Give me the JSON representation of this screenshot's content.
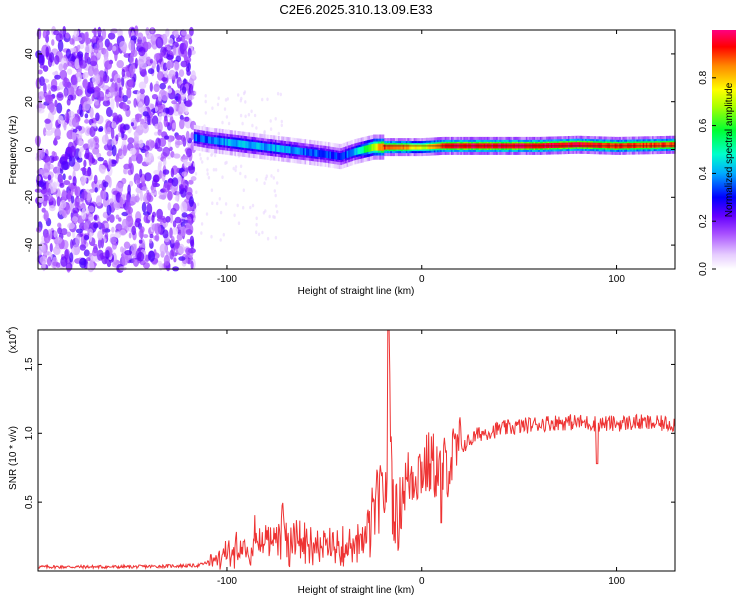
{
  "chart_data": [
    {
      "type": "heatmap",
      "title": "C2E6.2025.310.13.09.E33",
      "xlabel": "Height of straight line (km)",
      "ylabel": "Frequency (Hz)",
      "xlim": [
        -197,
        130
      ],
      "ylim": [
        -50,
        50
      ],
      "xticks": [
        -100,
        0,
        100
      ],
      "yticks": [
        -40,
        -20,
        0,
        20,
        40
      ],
      "colorbar": {
        "label": "Normalized spectral amplitude",
        "range": [
          0,
          1
        ],
        "ticks": [
          0.0,
          0.2,
          0.4,
          0.6,
          0.8
        ]
      },
      "noise_region_x": [
        -197,
        -117
      ],
      "ridge": {
        "x": [
          -117,
          -110,
          -100,
          -90,
          -80,
          -70,
          -60,
          -50,
          -42,
          -35,
          -30,
          -25,
          -20,
          -10,
          0,
          10,
          20,
          40,
          60,
          80,
          100,
          130
        ],
        "frequency_hz": [
          5,
          4,
          3,
          2,
          1,
          0,
          -1,
          -2,
          -3,
          -1,
          0,
          1,
          1,
          1,
          1,
          1.5,
          1.5,
          1.5,
          1.5,
          2,
          1.5,
          2
        ],
        "amplitude": [
          0.35,
          0.35,
          0.4,
          0.4,
          0.4,
          0.4,
          0.35,
          0.35,
          0.3,
          0.4,
          0.55,
          0.7,
          0.9,
          0.85,
          0.7,
          0.9,
          0.95,
          0.95,
          0.95,
          0.95,
          0.9,
          0.9
        ]
      }
    },
    {
      "type": "line",
      "title": "",
      "xlabel": "Height of straight line (km)",
      "ylabel": "SNR (10 * v/v)",
      "yscale_label": "(x10",
      "yscale_exp": "4",
      "xlim": [
        -197,
        130
      ],
      "ylim": [
        0,
        1.75
      ],
      "xticks": [
        -100,
        0,
        100
      ],
      "yticks": [
        0.5,
        1.0,
        1.5
      ],
      "ytick_labels": [
        "0.5",
        "1.0",
        "1.5"
      ],
      "color": "#ee3333",
      "series": [
        {
          "name": "SNR",
          "x": [
            -197,
            -150,
            -115,
            -108,
            -100,
            -90,
            -80,
            -72,
            -65,
            -55,
            -45,
            -35,
            -28,
            -25,
            -23,
            -20,
            -18,
            -17,
            -15,
            -12,
            -10,
            -5,
            0,
            5,
            10,
            15,
            20,
            25,
            30,
            40,
            50,
            60,
            70,
            80,
            90,
            100,
            110,
            120,
            130
          ],
          "y": [
            0.03,
            0.03,
            0.04,
            0.07,
            0.12,
            0.2,
            0.25,
            0.27,
            0.23,
            0.18,
            0.17,
            0.18,
            0.22,
            0.4,
            0.5,
            0.55,
            0.6,
            1.72,
            0.5,
            0.35,
            0.6,
            0.7,
            0.75,
            0.78,
            0.72,
            0.8,
            0.9,
            0.95,
            1.0,
            1.03,
            1.05,
            1.07,
            1.08,
            1.08,
            1.07,
            1.07,
            1.08,
            1.07,
            1.07
          ]
        }
      ]
    }
  ]
}
